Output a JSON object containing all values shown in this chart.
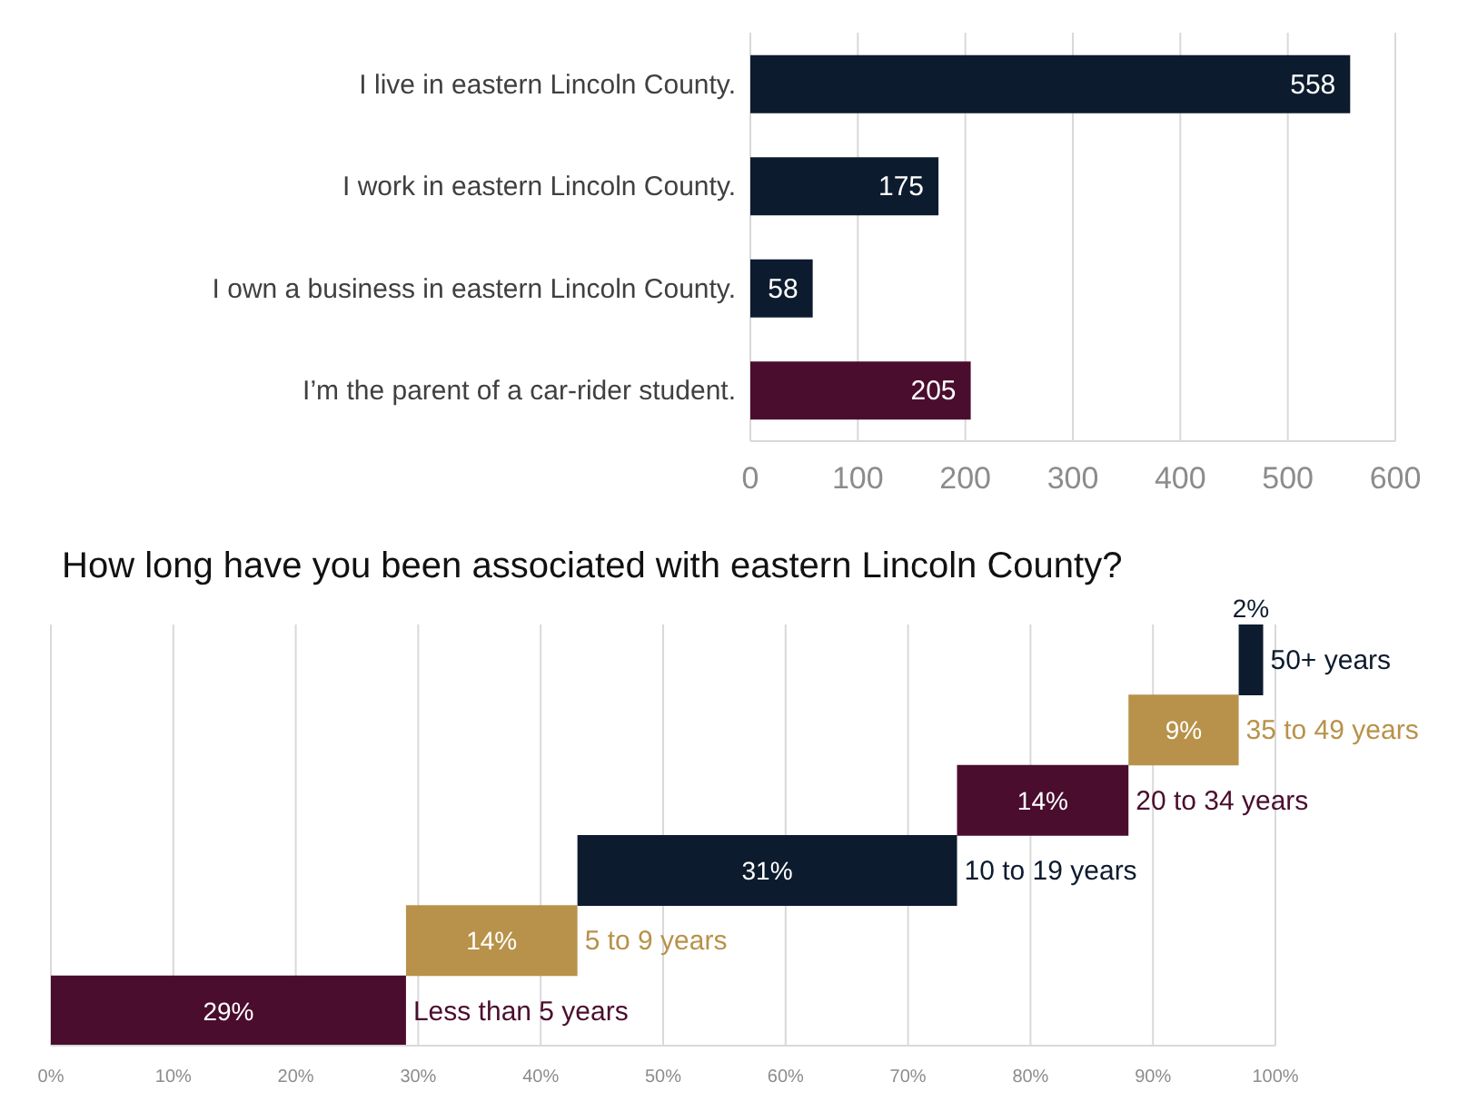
{
  "chart_data": [
    {
      "type": "bar",
      "orientation": "horizontal",
      "categories": [
        "I live in eastern Lincoln County.",
        "I work in eastern Lincoln County.",
        "I own a business in eastern Lincoln County.",
        "I’m the parent of a car-rider student."
      ],
      "values": [
        558,
        175,
        58,
        205
      ],
      "colors": [
        "#0d1b2e",
        "#0d1b2e",
        "#0d1b2e",
        "#4a0d2e"
      ],
      "xlim": [
        0,
        600
      ],
      "xticks": [
        0,
        100,
        200,
        300,
        400,
        500,
        600
      ],
      "grid": "x",
      "data_labels": true
    },
    {
      "type": "bar",
      "orientation": "horizontal",
      "title": "How long have you been associated with eastern Lincoln County?",
      "categories": [
        "50+ years",
        "35 to 49 years",
        "20 to 34 years",
        "10 to 19 years",
        "5 to 9 years",
        "Less than 5 years"
      ],
      "values": [
        2,
        9,
        14,
        31,
        14,
        29
      ],
      "base": [
        97,
        88,
        74,
        43,
        29,
        0
      ],
      "value_labels": [
        "2%",
        "9%",
        "14%",
        "31%",
        "14%",
        "29%"
      ],
      "colors": [
        "#0d1b2e",
        "#b8924a",
        "#4a0d2e",
        "#0d1b2e",
        "#b8924a",
        "#4a0d2e"
      ],
      "xlim": [
        0,
        100
      ],
      "xticks": [
        {
          "value": 0,
          "label": "0%"
        },
        {
          "value": 10,
          "label": "10%"
        },
        {
          "value": 20,
          "label": "20%"
        },
        {
          "value": 30,
          "label": "30%"
        },
        {
          "value": 40,
          "label": "40%"
        },
        {
          "value": 50,
          "label": "50%"
        },
        {
          "value": 60,
          "label": "60%"
        },
        {
          "value": 70,
          "label": "70%"
        },
        {
          "value": 80,
          "label": "80%"
        },
        {
          "value": 90,
          "label": "90%"
        },
        {
          "value": 100,
          "label": "100%"
        }
      ],
      "grid": "x",
      "tick_labels": "x"
    }
  ]
}
